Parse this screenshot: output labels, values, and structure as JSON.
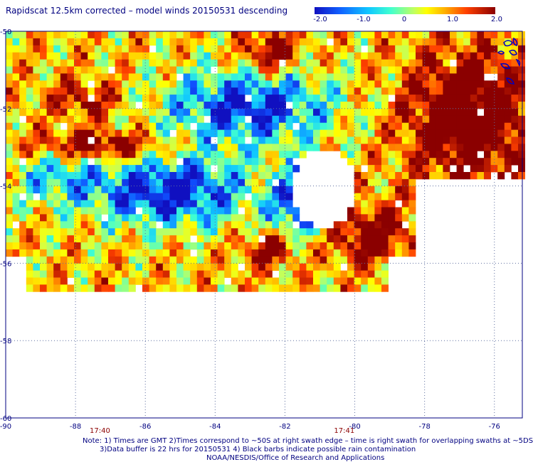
{
  "title": "Rapidscat 12.5km corrected – model winds 20150531 descending",
  "colorbar": {
    "ticks": [
      "-2.0",
      "-1.0",
      "0",
      "1.0",
      "2.0"
    ],
    "range": [
      -2.0,
      2.0
    ]
  },
  "map": {
    "lon_ticks": [
      "-90",
      "-88",
      "-86",
      "-84",
      "-82",
      "-80",
      "-78",
      "-76"
    ],
    "lat_ticks": [
      "-50",
      "-52",
      "-54",
      "-56",
      "-58",
      "-60"
    ],
    "lon_range": [
      -90,
      -75.2
    ],
    "lat_range": [
      -50,
      -60
    ],
    "swath_times": [
      {
        "label": "17:40",
        "lon": -87.3
      },
      {
        "label": "17:41",
        "lon": -80.3
      }
    ],
    "data_coverage": {
      "lat_south_edge": -56.6,
      "lon_east_edge": -78.2
    }
  },
  "notes": {
    "line1": "Note: 1) Times are GMT 2)Times correspond to ~50S at right swath edge – time is right swath for overlapping swaths at ~5DS",
    "line2": "3)Data buffer is 22 hrs for 20150531 4) Black barbs indicate possible rain contamination",
    "line3": "NOAA/NESDIS/Office of Research and Applications"
  }
}
